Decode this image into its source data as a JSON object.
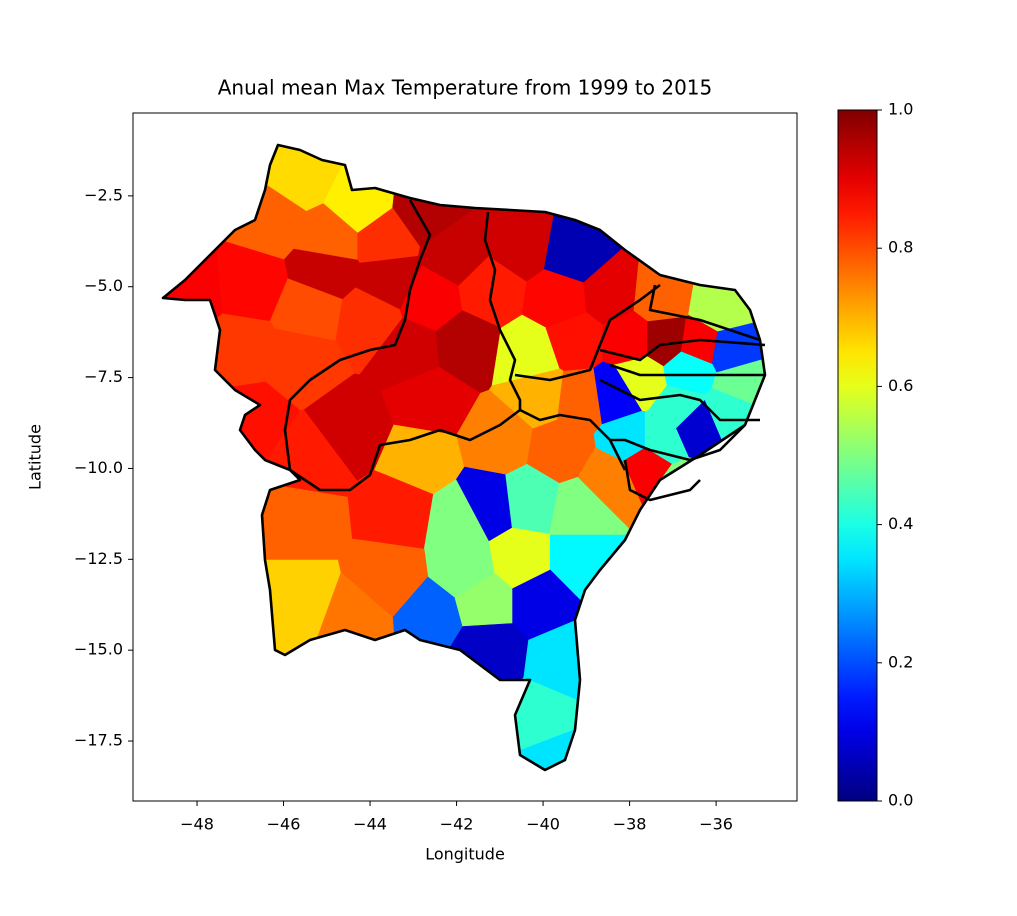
{
  "chart_data": {
    "type": "map",
    "title": "Anual mean Max Temperature from 1999 to 2015",
    "xlabel": "Longitude",
    "ylabel": "Latitude",
    "xlim": [
      -49.48,
      -34.13
    ],
    "ylim": [
      -19.15,
      -0.22
    ],
    "xticks": [
      {
        "value": -48,
        "label": "−48"
      },
      {
        "value": -46,
        "label": "−46"
      },
      {
        "value": -44,
        "label": "−44"
      },
      {
        "value": -42,
        "label": "−42"
      },
      {
        "value": -40,
        "label": "−40"
      },
      {
        "value": -38,
        "label": "−38"
      },
      {
        "value": -36,
        "label": "−36"
      }
    ],
    "yticks": [
      {
        "value": -2.5,
        "label": "−2.5"
      },
      {
        "value": -5,
        "label": "−5.0"
      },
      {
        "value": -7.5,
        "label": "−7.5"
      },
      {
        "value": -10,
        "label": "−10.0"
      },
      {
        "value": -12.5,
        "label": "−12.5"
      },
      {
        "value": -15,
        "label": "−15.0"
      },
      {
        "value": -17.5,
        "label": "−17.5"
      }
    ],
    "colormap": "jet",
    "colorbar": {
      "lim": [
        0,
        1
      ],
      "ticks": [
        {
          "value": 0,
          "label": "0.0"
        },
        0.2,
        0.4,
        0.6,
        0.8,
        {
          "value": 1,
          "label": "1.0"
        }
      ]
    },
    "lon": [
      -45.62,
      -44.23,
      -42.73,
      -46.31,
      -44.92,
      -43.65,
      -45.04,
      -43.54,
      -42.03,
      -40.53,
      -39.26,
      -48.16,
      -46.77,
      -45.39,
      -44.0,
      -42.61,
      -41.23,
      -39.61,
      -38.45,
      -37.29,
      -35.91,
      -47.01,
      -45.62,
      -43.08,
      -41.8,
      -40.3,
      -39.26,
      -37.99,
      -37.18,
      -36.37,
      -35.68,
      -37.76,
      -36.6,
      -35.45,
      -38.34,
      -36.83,
      -36.49,
      -35.68,
      -46.77,
      -44.46,
      -42.61,
      -40.07,
      -39.14,
      -37.99,
      -37.29,
      -37.64,
      -45.39,
      -42.84,
      -40.99,
      -39.61,
      -38.45,
      -36.83,
      -45.62,
      -43.31,
      -41.92,
      -41.27,
      -40.3,
      -39.14,
      -40.53,
      -41.8,
      -39.14,
      -45.62,
      -43.54,
      -42.61,
      -41.34,
      -40.07,
      -44.35,
      -41.27,
      -39.49,
      -40.07,
      -39.72
    ],
    "lat": [
      -1.92,
      -2.75,
      -2.94,
      -3.16,
      -3.71,
      -3.71,
      -4.54,
      -4.81,
      -4.12,
      -3.85,
      -4.12,
      -5.09,
      -4.95,
      -5.64,
      -5.91,
      -5.36,
      -5.09,
      -5.36,
      -5.22,
      -5.36,
      -5.64,
      -6.74,
      -7.01,
      -6.74,
      -6.6,
      -6.88,
      -6.46,
      -6.46,
      -6.46,
      -6.6,
      -6.74,
      -7.56,
      -7.29,
      -7.7,
      -7.98,
      -8.39,
      -8.8,
      -8.39,
      -8.67,
      -8.94,
      -8.12,
      -7.98,
      -8.12,
      -9.22,
      -9.22,
      -9.9,
      -9.77,
      -9.77,
      -9.22,
      -9.49,
      -10.32,
      -10.59,
      -11.42,
      -11.14,
      -11.42,
      -11.01,
      -10.87,
      -11.14,
      -12.52,
      -12.79,
      -12.52,
      -13.62,
      -13.07,
      -14.03,
      -13.62,
      -13.62,
      -14.17,
      -15.0,
      -15.27,
      -16.92,
      -18.02
    ],
    "values": [
      0.66,
      0.64,
      0.95,
      0.78,
      0.78,
      0.83,
      0.93,
      0.93,
      0.93,
      0.92,
      0.05,
      0.88,
      0.87,
      0.8,
      0.83,
      0.88,
      0.85,
      0.87,
      0.9,
      0.78,
      0.55,
      0.82,
      0.82,
      0.92,
      0.95,
      0.6,
      0.86,
      0.88,
      0.97,
      0.88,
      0.18,
      0.6,
      0.38,
      0.48,
      0.12,
      0.42,
      0.08,
      0.42,
      0.86,
      0.92,
      0.9,
      0.7,
      0.78,
      0.35,
      0.42,
      0.88,
      0.85,
      0.7,
      0.75,
      0.78,
      0.75,
      0.5,
      0.78,
      0.85,
      0.5,
      0.1,
      0.45,
      0.5,
      0.6,
      0.5,
      0.37,
      0.67,
      0.78,
      0.22,
      0.52,
      0.1,
      0.76,
      0.07,
      0.35,
      0.42,
      0.35
    ]
  }
}
